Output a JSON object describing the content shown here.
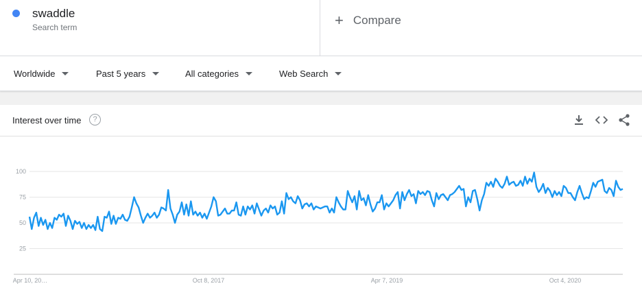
{
  "term": {
    "name": "swaddle",
    "subtitle": "Search term",
    "color": "#4285f4"
  },
  "compare": {
    "label": "Compare"
  },
  "filters": {
    "region": "Worldwide",
    "period": "Past 5 years",
    "category": "All categories",
    "property": "Web Search"
  },
  "card": {
    "title": "Interest over time",
    "help": "?"
  },
  "chart_data": {
    "type": "line",
    "title": "Interest over time",
    "xlabel": "",
    "ylabel": "",
    "ylim": [
      0,
      100
    ],
    "y_ticks": [
      "25",
      "50",
      "75",
      "100"
    ],
    "x_ticks": [
      "Apr 10, 20…",
      "Oct 8, 2017",
      "Apr 7, 2019",
      "Oct 4, 2020"
    ],
    "grid": true,
    "series": [
      {
        "color": "#1a97f0",
        "values": [
          56,
          44,
          55,
          60,
          47,
          55,
          48,
          53,
          44,
          50,
          45,
          55,
          53,
          58,
          56,
          59,
          47,
          57,
          52,
          44,
          52,
          49,
          51,
          45,
          50,
          44,
          48,
          45,
          48,
          43,
          56,
          44,
          42,
          56,
          55,
          61,
          49,
          57,
          49,
          55,
          54,
          58,
          53,
          52,
          56,
          65,
          75,
          69,
          65,
          57,
          50,
          55,
          59,
          55,
          57,
          60,
          55,
          58,
          65,
          64,
          62,
          82,
          64,
          58,
          50,
          58,
          61,
          70,
          58,
          68,
          57,
          71,
          58,
          61,
          57,
          60,
          55,
          59,
          54,
          60,
          66,
          75,
          71,
          57,
          58,
          61,
          64,
          59,
          59,
          62,
          62,
          70,
          58,
          57,
          66,
          58,
          66,
          63,
          67,
          59,
          69,
          63,
          57,
          62,
          64,
          60,
          67,
          64,
          66,
          58,
          60,
          71,
          59,
          79,
          73,
          75,
          71,
          69,
          76,
          72,
          64,
          68,
          69,
          66,
          69,
          63,
          66,
          65,
          64,
          65,
          66,
          66,
          60,
          64,
          60,
          75,
          70,
          66,
          63,
          63,
          81,
          75,
          70,
          76,
          63,
          81,
          72,
          74,
          67,
          77,
          68,
          61,
          64,
          70,
          70,
          77,
          63,
          69,
          66,
          69,
          72,
          77,
          80,
          64,
          80,
          72,
          78,
          82,
          76,
          78,
          69,
          81,
          78,
          80,
          77,
          81,
          80,
          72,
          66,
          79,
          73,
          77,
          78,
          75,
          72,
          77,
          78,
          80,
          83,
          86,
          82,
          83,
          66,
          75,
          70,
          81,
          82,
          73,
          62,
          72,
          78,
          89,
          86,
          90,
          85,
          93,
          90,
          86,
          84,
          88,
          95,
          87,
          89,
          90,
          86,
          87,
          91,
          86,
          95,
          88,
          93,
          90,
          99,
          85,
          80,
          83,
          88,
          79,
          84,
          81,
          75,
          81,
          77,
          80,
          76,
          86,
          84,
          79,
          79,
          75,
          72,
          80,
          86,
          79,
          73,
          75,
          74,
          81,
          89,
          85,
          90,
          91,
          92,
          81,
          79,
          84,
          82,
          76,
          91,
          85,
          82,
          83
        ]
      }
    ]
  }
}
